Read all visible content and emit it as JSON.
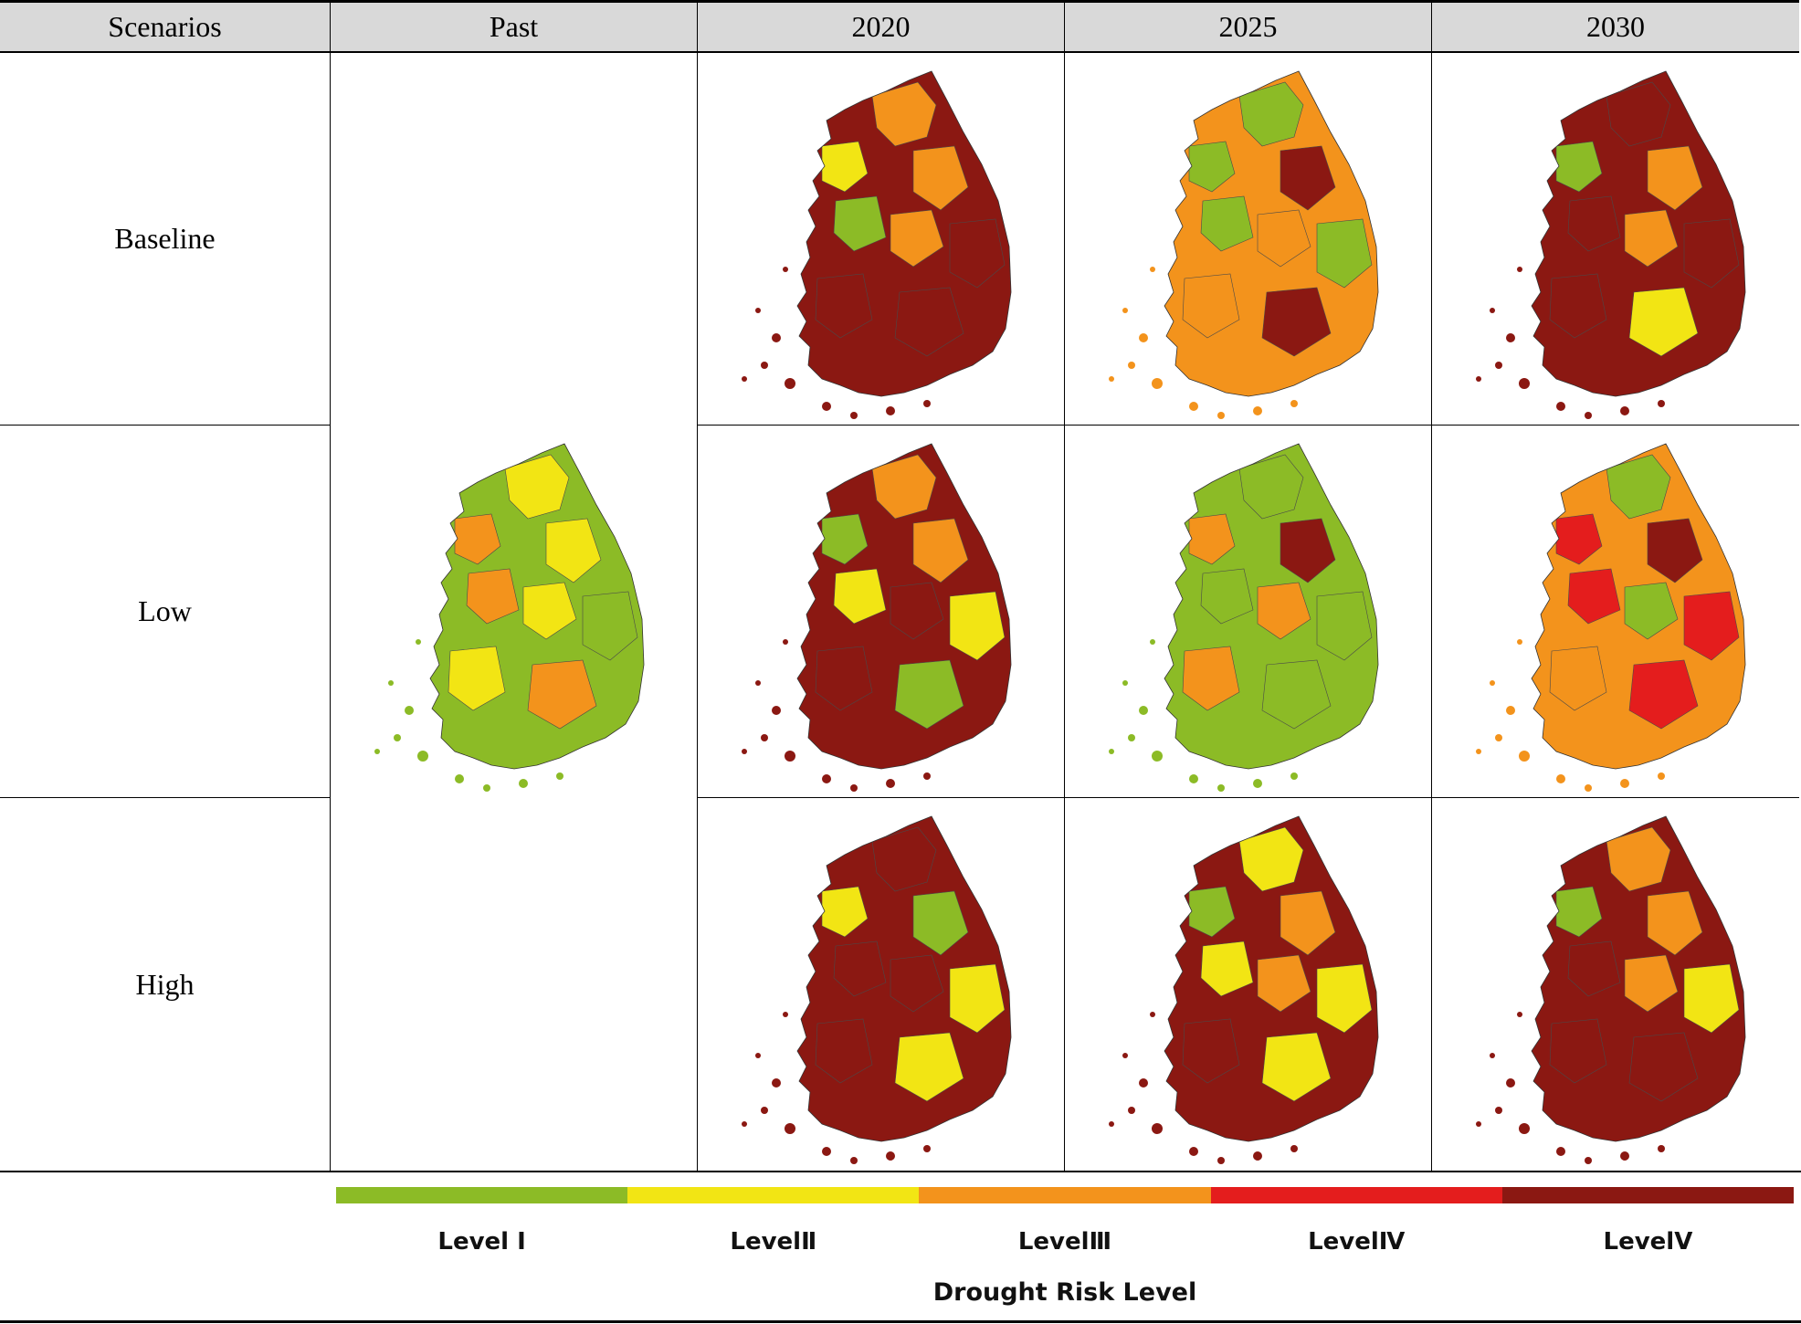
{
  "header": {
    "scenarios": "Scenarios",
    "past": "Past",
    "y2020": "2020",
    "y2025": "2025",
    "y2030": "2030"
  },
  "rows": [
    "Baseline",
    "Low",
    "High"
  ],
  "colors": {
    "level1": "#8cbb26",
    "level2": "#f2e514",
    "level3": "#f3931c",
    "level4": "#e41d1d",
    "level5": "#8b1812"
  },
  "maps": {
    "past": {
      "base": "level1",
      "patches": [
        "level2",
        "level3",
        "level2",
        "level3",
        "level2",
        "level1",
        "level2",
        "level3"
      ]
    },
    "baseline_2020": {
      "base": "level5",
      "patches": [
        "level3",
        "level2",
        "level3",
        "level1",
        "level3",
        "level5",
        "level5",
        "level5"
      ]
    },
    "baseline_2025": {
      "base": "level3",
      "patches": [
        "level1",
        "level1",
        "level5",
        "level1",
        "level3",
        "level1",
        "level3",
        "level5"
      ]
    },
    "baseline_2030": {
      "base": "level5",
      "patches": [
        "level5",
        "level1",
        "level3",
        "level5",
        "level3",
        "level5",
        "level5",
        "level2"
      ]
    },
    "low_2020": {
      "base": "level5",
      "patches": [
        "level3",
        "level1",
        "level3",
        "level2",
        "level5",
        "level2",
        "level5",
        "level1"
      ]
    },
    "low_2025": {
      "base": "level1",
      "patches": [
        "level1",
        "level3",
        "level5",
        "level1",
        "level3",
        "level1",
        "level3",
        "level1"
      ]
    },
    "low_2030": {
      "base": "level3",
      "patches": [
        "level1",
        "level4",
        "level5",
        "level4",
        "level1",
        "level4",
        "level3",
        "level4"
      ]
    },
    "high_2020": {
      "base": "level5",
      "patches": [
        "level5",
        "level2",
        "level1",
        "level5",
        "level5",
        "level2",
        "level5",
        "level2"
      ]
    },
    "high_2025": {
      "base": "level5",
      "patches": [
        "level2",
        "level1",
        "level3",
        "level2",
        "level3",
        "level2",
        "level5",
        "level2"
      ]
    },
    "high_2030": {
      "base": "level5",
      "patches": [
        "level3",
        "level1",
        "level3",
        "level5",
        "level3",
        "level2",
        "level5",
        "level5"
      ]
    }
  },
  "legend": {
    "levels": [
      "Level Ⅰ",
      "LevelⅡ",
      "LevelⅢ",
      "LevelⅣ",
      "LevelⅤ"
    ],
    "title": "Drought Risk  Level"
  }
}
